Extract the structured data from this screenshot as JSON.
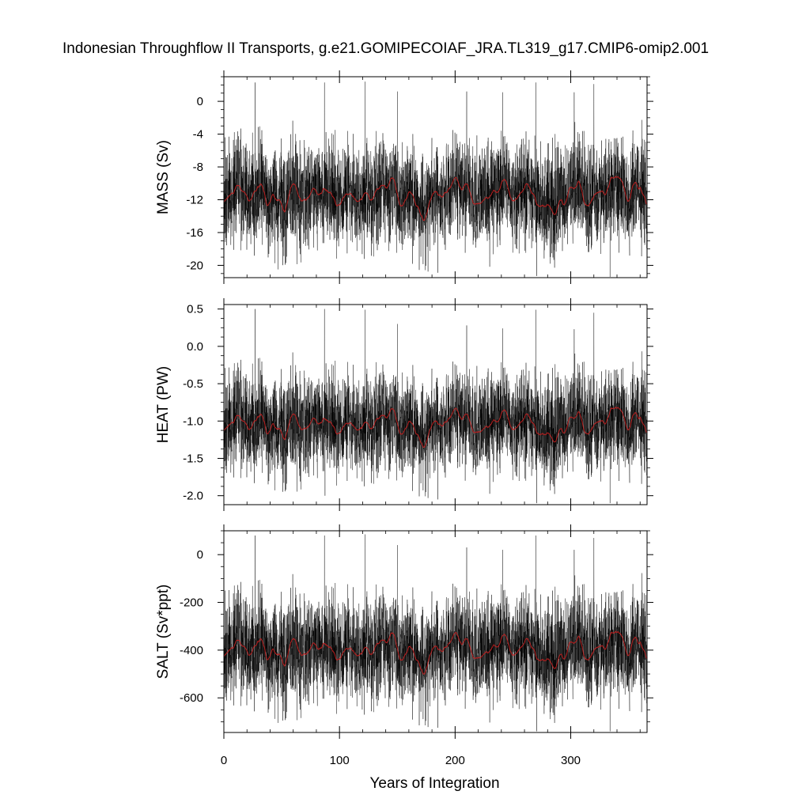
{
  "title": "Indonesian Throughflow II Transports, g.e21.GOMIPECOIAF_JRA.TL319_g17.CMIP6-omip2.001",
  "chart_data": [
    {
      "type": "line",
      "ylabel": "MASS (Sv)",
      "xlabel": "",
      "xlim": [
        0,
        366
      ],
      "ylim": [
        -21.5,
        3.0
      ],
      "yticks": [
        0,
        -4,
        -8,
        -12,
        -16,
        -20
      ],
      "ytick_labels": [
        "0",
        "-4",
        "-8",
        "-12",
        "-16",
        "-20"
      ],
      "xticks": [
        0,
        100,
        200,
        300
      ],
      "grid": false,
      "series": [
        {
          "kind": "raw",
          "color": "#000000",
          "mean": -11.5,
          "raw_amplitude": 3.0,
          "smooth_amplitude": 0.9,
          "spikes": [
            [
              27,
              2.3
            ],
            [
              87,
              2.3
            ],
            [
              122,
              2.4
            ],
            [
              150,
              1.2
            ],
            [
              210,
              1.2
            ],
            [
              241,
              1.1
            ],
            [
              270,
              2.3
            ],
            [
              303,
              1.1
            ],
            [
              320,
              2.1
            ],
            [
              270.5,
              -21.3
            ],
            [
              334,
              -21.4
            ],
            [
              185,
              -20.9
            ],
            [
              47,
              -20.5
            ]
          ]
        },
        {
          "kind": "smoothed",
          "color": "#c81e1e",
          "mean": -11.5,
          "smooth_amplitude": 0.9
        }
      ]
    },
    {
      "type": "line",
      "ylabel": "HEAT (PW)",
      "xlabel": "",
      "xlim": [
        0,
        366
      ],
      "ylim": [
        -2.12,
        0.56
      ],
      "yticks": [
        0.5,
        0.0,
        -0.5,
        -1.0,
        -1.5,
        -2.0
      ],
      "ytick_labels": [
        "0.5",
        "0.0",
        "-0.5",
        "-1.0",
        "-1.5",
        "-2.0"
      ],
      "xticks": [
        0,
        100,
        200,
        300
      ],
      "grid": false,
      "series": [
        {
          "kind": "raw",
          "color": "#000000",
          "mean": -1.05,
          "raw_amplitude": 0.32,
          "smooth_amplitude": 0.09,
          "spikes": [
            [
              27,
              0.5
            ],
            [
              87,
              0.5
            ],
            [
              122,
              0.49
            ],
            [
              150,
              0.3
            ],
            [
              210,
              0.28
            ],
            [
              241,
              0.24
            ],
            [
              270,
              0.49
            ],
            [
              303,
              0.23
            ],
            [
              320,
              0.45
            ],
            [
              270.5,
              -2.1
            ],
            [
              334,
              -2.1
            ],
            [
              185,
              -2.05
            ],
            [
              87.5,
              -2.0
            ]
          ]
        },
        {
          "kind": "smoothed",
          "color": "#c81e1e",
          "mean": -1.05,
          "smooth_amplitude": 0.09
        }
      ]
    },
    {
      "type": "line",
      "ylabel": "SALT (Sv*ppt)",
      "xlabel": "Years of Integration",
      "xlim": [
        0,
        366
      ],
      "ylim": [
        -745,
        100
      ],
      "yticks": [
        0,
        -200,
        -400,
        -600
      ],
      "ytick_labels": [
        "0",
        "-200",
        "-400",
        "-600"
      ],
      "xticks": [
        0,
        100,
        200,
        300
      ],
      "xtick_labels": [
        "0",
        "100",
        "200",
        "300"
      ],
      "grid": false,
      "series": [
        {
          "kind": "raw",
          "color": "#000000",
          "mean": -400,
          "raw_amplitude": 105,
          "smooth_amplitude": 30,
          "spikes": [
            [
              27,
              80
            ],
            [
              87,
              80
            ],
            [
              122,
              85
            ],
            [
              150,
              40
            ],
            [
              210,
              30
            ],
            [
              241,
              20
            ],
            [
              270,
              80
            ],
            [
              303,
              20
            ],
            [
              320,
              70
            ],
            [
              270.5,
              -740
            ],
            [
              334,
              -740
            ],
            [
              185,
              -725
            ],
            [
              47,
              -705
            ]
          ]
        },
        {
          "kind": "smoothed",
          "color": "#c81e1e",
          "mean": -400,
          "smooth_amplitude": 30
        }
      ]
    }
  ]
}
